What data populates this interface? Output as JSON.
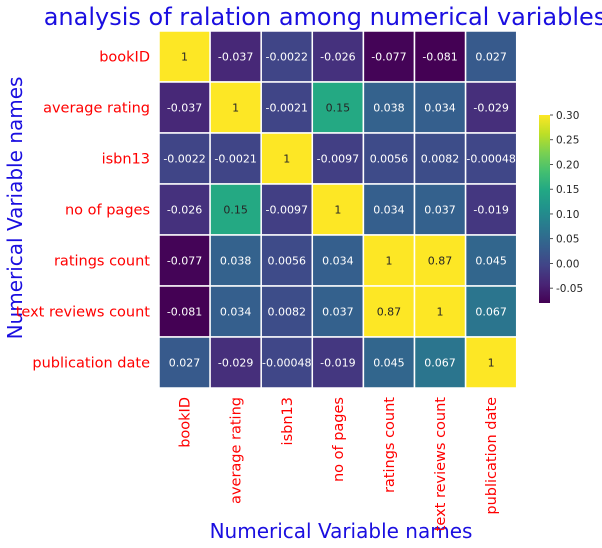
{
  "chart_data": {
    "type": "heatmap",
    "title": "analysis of ralation among numerical variables",
    "xlabel": "Numerical Variable names",
    "ylabel": "Numerical Variable names",
    "rows": [
      "bookID",
      "average rating",
      "isbn13",
      "no of pages",
      "ratings count",
      "text reviews count",
      "publication date"
    ],
    "columns": [
      "bookID",
      "average rating",
      "isbn13",
      "no of pages",
      "ratings count",
      "text reviews count",
      "publication date"
    ],
    "values": [
      [
        1,
        -0.037,
        -0.0022,
        -0.026,
        -0.077,
        -0.081,
        0.027
      ],
      [
        -0.037,
        1,
        -0.0021,
        0.15,
        0.038,
        0.034,
        -0.029
      ],
      [
        -0.0022,
        -0.0021,
        1,
        -0.0097,
        0.0056,
        0.0082,
        -0.00048
      ],
      [
        -0.026,
        0.15,
        -0.0097,
        1,
        0.034,
        0.037,
        -0.019
      ],
      [
        -0.077,
        0.038,
        0.0056,
        0.034,
        1,
        0.87,
        0.045
      ],
      [
        -0.081,
        0.034,
        0.0082,
        0.037,
        0.87,
        1,
        0.067
      ],
      [
        0.027,
        -0.029,
        -0.00048,
        -0.019,
        0.045,
        0.067,
        1
      ]
    ],
    "annotations": [
      [
        "1",
        "-0.037",
        "-0.0022",
        "-0.026",
        "-0.077",
        "-0.081",
        "0.027"
      ],
      [
        "-0.037",
        "1",
        "-0.0021",
        "0.15",
        "0.038",
        "0.034",
        "-0.029"
      ],
      [
        "-0.0022",
        "-0.0021",
        "1",
        "-0.0097",
        "0.0056",
        "0.0082",
        "-0.00048"
      ],
      [
        "-0.026",
        "0.15",
        "-0.0097",
        "1",
        "0.034",
        "0.037",
        "-0.019"
      ],
      [
        "-0.077",
        "0.038",
        "0.0056",
        "0.034",
        "1",
        "0.87",
        "0.045"
      ],
      [
        "-0.081",
        "0.034",
        "0.0082",
        "0.037",
        "0.87",
        "1",
        "0.067"
      ],
      [
        "0.027",
        "-0.029",
        "-0.00048",
        "-0.019",
        "0.045",
        "0.067",
        "1"
      ]
    ],
    "colormap": "viridis",
    "vmin": -0.08,
    "vmax": 0.3,
    "colorbar_ticks": [
      "0.30",
      "0.25",
      "0.20",
      "0.15",
      "0.10",
      "0.05",
      "0.00",
      "-0.05"
    ],
    "colorbar_tick_values": [
      0.3,
      0.25,
      0.2,
      0.15,
      0.1,
      0.05,
      0.0,
      -0.05
    ],
    "colorbar_placement": "right",
    "colors": {
      "title": "#1a0ee0",
      "axis_label": "#1a0ee0",
      "tick_label": "#ff0000",
      "cell_border": "#ffffff"
    }
  }
}
